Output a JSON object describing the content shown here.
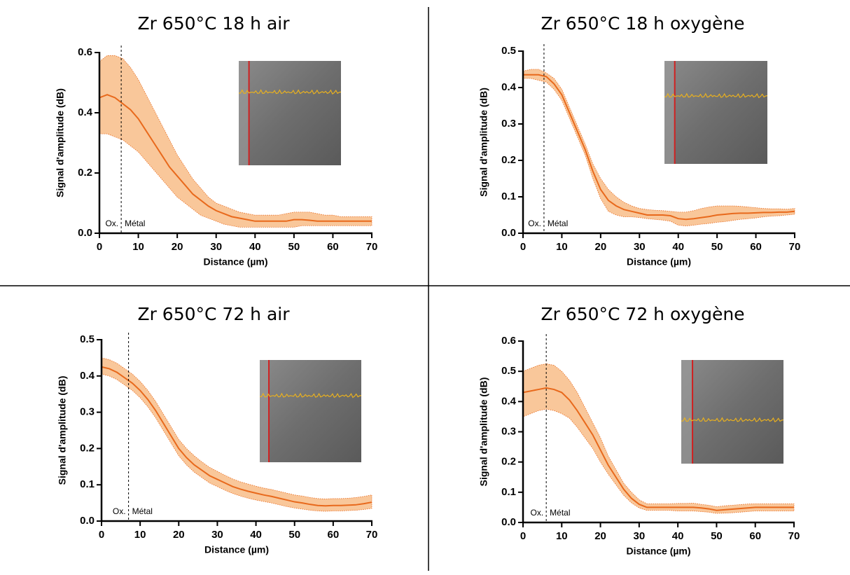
{
  "chart_data": [
    {
      "type": "line",
      "title": "Zr 650°C 18 h air",
      "x_label": "Distance (µm)",
      "y_label": "Signal d'amplitude (dB)",
      "annotations": [
        "Ox.",
        "Métal"
      ],
      "interface_x": 5.6,
      "color": "#e8691c",
      "band_color": "#f9c79a",
      "x": [
        0,
        2,
        4,
        6,
        8,
        10,
        12,
        14,
        16,
        18,
        20,
        22,
        24,
        26,
        28,
        30,
        32,
        34,
        36,
        38,
        40,
        42,
        44,
        46,
        48,
        50,
        52,
        54,
        56,
        58,
        60,
        62,
        64,
        66,
        68,
        70
      ],
      "values": [
        0.45,
        0.46,
        0.45,
        0.43,
        0.41,
        0.38,
        0.34,
        0.3,
        0.26,
        0.22,
        0.19,
        0.16,
        0.13,
        0.11,
        0.09,
        0.075,
        0.065,
        0.055,
        0.05,
        0.045,
        0.04,
        0.04,
        0.04,
        0.04,
        0.04,
        0.045,
        0.045,
        0.043,
        0.04,
        0.04,
        0.04,
        0.04,
        0.04,
        0.04,
        0.04,
        0.04
      ],
      "band": {
        "upper": [
          0.57,
          0.59,
          0.59,
          0.58,
          0.55,
          0.51,
          0.46,
          0.41,
          0.36,
          0.31,
          0.26,
          0.22,
          0.18,
          0.15,
          0.12,
          0.1,
          0.09,
          0.08,
          0.07,
          0.065,
          0.06,
          0.06,
          0.06,
          0.06,
          0.065,
          0.07,
          0.07,
          0.07,
          0.065,
          0.06,
          0.06,
          0.055,
          0.055,
          0.055,
          0.055,
          0.055
        ],
        "lower": [
          0.33,
          0.33,
          0.32,
          0.31,
          0.29,
          0.27,
          0.24,
          0.21,
          0.18,
          0.15,
          0.12,
          0.1,
          0.08,
          0.06,
          0.05,
          0.04,
          0.03,
          0.025,
          0.02,
          0.02,
          0.02,
          0.02,
          0.02,
          0.02,
          0.02,
          0.02,
          0.025,
          0.025,
          0.025,
          0.025,
          0.025,
          0.025,
          0.025,
          0.025,
          0.025,
          0.025
        ]
      },
      "xlim": [
        0,
        70
      ],
      "xticks": [
        0,
        10,
        20,
        30,
        40,
        50,
        60,
        70
      ],
      "ylim": [
        0,
        0.6
      ],
      "yticks": [
        {
          "value": 0,
          "label": "0.0"
        },
        0.2,
        0.4,
        0.6
      ]
    },
    {
      "type": "line",
      "title": "Zr 650°C 18 h oxygène",
      "x_label": "Distance (µm)",
      "y_label": "Signal d'amplitude (dB)",
      "annotations": [
        "Ox.",
        "Métal"
      ],
      "interface_x": 5.4,
      "color": "#e8691c",
      "band_color": "#f9c79a",
      "x": [
        0,
        2,
        4,
        6,
        8,
        10,
        12,
        14,
        16,
        18,
        20,
        22,
        24,
        26,
        28,
        30,
        32,
        34,
        36,
        38,
        40,
        42,
        44,
        46,
        48,
        50,
        52,
        54,
        56,
        58,
        60,
        62,
        64,
        66,
        68,
        70
      ],
      "values": [
        0.435,
        0.435,
        0.435,
        0.43,
        0.41,
        0.38,
        0.33,
        0.28,
        0.23,
        0.17,
        0.12,
        0.09,
        0.075,
        0.065,
        0.06,
        0.055,
        0.05,
        0.05,
        0.05,
        0.048,
        0.04,
        0.038,
        0.04,
        0.043,
        0.046,
        0.05,
        0.052,
        0.054,
        0.055,
        0.055,
        0.056,
        0.057,
        0.057,
        0.058,
        0.058,
        0.06
      ],
      "band": {
        "upper": [
          0.445,
          0.45,
          0.45,
          0.44,
          0.425,
          0.395,
          0.345,
          0.295,
          0.245,
          0.19,
          0.15,
          0.12,
          0.1,
          0.085,
          0.075,
          0.068,
          0.065,
          0.063,
          0.062,
          0.06,
          0.058,
          0.058,
          0.062,
          0.068,
          0.072,
          0.075,
          0.075,
          0.075,
          0.074,
          0.072,
          0.07,
          0.068,
          0.067,
          0.067,
          0.066,
          0.068
        ],
        "lower": [
          0.425,
          0.425,
          0.42,
          0.415,
          0.395,
          0.365,
          0.315,
          0.265,
          0.215,
          0.15,
          0.095,
          0.06,
          0.05,
          0.045,
          0.045,
          0.043,
          0.04,
          0.038,
          0.036,
          0.033,
          0.022,
          0.02,
          0.022,
          0.025,
          0.027,
          0.03,
          0.032,
          0.035,
          0.038,
          0.04,
          0.042,
          0.045,
          0.047,
          0.048,
          0.05,
          0.052
        ]
      },
      "xlim": [
        0,
        70
      ],
      "xticks": [
        0,
        10,
        20,
        30,
        40,
        50,
        60,
        70
      ],
      "ylim": [
        0,
        0.5
      ],
      "yticks": [
        {
          "value": 0,
          "label": "0.0"
        },
        0.1,
        0.2,
        0.3,
        0.4,
        0.5
      ]
    },
    {
      "type": "line",
      "title": "Zr 650°C 72 h air",
      "x_label": "Distance (µm)",
      "y_label": "Signal d'amplitude (dB)",
      "annotations": [
        "Ox.",
        "Métal"
      ],
      "interface_x": 7,
      "color": "#e8691c",
      "band_color": "#f9c79a",
      "x": [
        0,
        2,
        4,
        6,
        8,
        10,
        12,
        14,
        16,
        18,
        20,
        22,
        24,
        26,
        28,
        30,
        32,
        34,
        36,
        38,
        40,
        42,
        44,
        46,
        48,
        50,
        52,
        54,
        56,
        58,
        60,
        62,
        64,
        66,
        68,
        70
      ],
      "values": [
        0.425,
        0.42,
        0.41,
        0.395,
        0.38,
        0.36,
        0.335,
        0.305,
        0.27,
        0.235,
        0.2,
        0.175,
        0.155,
        0.14,
        0.125,
        0.115,
        0.105,
        0.095,
        0.088,
        0.082,
        0.077,
        0.072,
        0.068,
        0.063,
        0.058,
        0.053,
        0.05,
        0.046,
        0.043,
        0.042,
        0.043,
        0.043,
        0.044,
        0.045,
        0.048,
        0.052
      ],
      "band": {
        "upper": [
          0.45,
          0.445,
          0.435,
          0.42,
          0.405,
          0.385,
          0.36,
          0.33,
          0.295,
          0.26,
          0.225,
          0.2,
          0.18,
          0.163,
          0.148,
          0.137,
          0.126,
          0.116,
          0.108,
          0.102,
          0.096,
          0.091,
          0.087,
          0.082,
          0.077,
          0.072,
          0.069,
          0.065,
          0.062,
          0.061,
          0.062,
          0.062,
          0.063,
          0.065,
          0.068,
          0.072
        ],
        "lower": [
          0.405,
          0.4,
          0.39,
          0.375,
          0.36,
          0.34,
          0.315,
          0.285,
          0.25,
          0.215,
          0.18,
          0.155,
          0.135,
          0.12,
          0.105,
          0.095,
          0.085,
          0.076,
          0.069,
          0.063,
          0.058,
          0.054,
          0.05,
          0.045,
          0.04,
          0.036,
          0.033,
          0.03,
          0.028,
          0.027,
          0.028,
          0.028,
          0.029,
          0.03,
          0.032,
          0.035
        ]
      },
      "xlim": [
        0,
        70
      ],
      "xticks": [
        0,
        10,
        20,
        30,
        40,
        50,
        60,
        70
      ],
      "ylim": [
        0,
        0.5
      ],
      "yticks": [
        {
          "value": 0,
          "label": "0.0"
        },
        0.1,
        0.2,
        0.3,
        0.4,
        0.5
      ]
    },
    {
      "type": "line",
      "title": "Zr 650°C 72 h oxygène",
      "x_label": "Distance (µm)",
      "y_label": "Signal d'amplitude (dB)",
      "annotations": [
        "Ox.",
        "Métal"
      ],
      "interface_x": 6,
      "color": "#e8691c",
      "band_color": "#f9c79a",
      "x": [
        0,
        2,
        4,
        6,
        8,
        10,
        12,
        14,
        16,
        18,
        20,
        22,
        24,
        26,
        28,
        30,
        32,
        34,
        36,
        38,
        40,
        42,
        44,
        46,
        48,
        50,
        52,
        54,
        56,
        58,
        60,
        62,
        64,
        66,
        68,
        70
      ],
      "values": [
        0.43,
        0.435,
        0.44,
        0.445,
        0.44,
        0.43,
        0.405,
        0.37,
        0.33,
        0.29,
        0.24,
        0.19,
        0.15,
        0.11,
        0.08,
        0.06,
        0.05,
        0.05,
        0.05,
        0.05,
        0.05,
        0.05,
        0.05,
        0.048,
        0.045,
        0.04,
        0.042,
        0.044,
        0.046,
        0.048,
        0.05,
        0.05,
        0.05,
        0.05,
        0.05,
        0.05
      ],
      "band": {
        "upper": [
          0.5,
          0.51,
          0.52,
          0.525,
          0.52,
          0.5,
          0.47,
          0.43,
          0.38,
          0.33,
          0.28,
          0.22,
          0.175,
          0.13,
          0.1,
          0.075,
          0.062,
          0.062,
          0.062,
          0.062,
          0.063,
          0.063,
          0.064,
          0.06,
          0.057,
          0.052,
          0.055,
          0.057,
          0.059,
          0.061,
          0.062,
          0.062,
          0.062,
          0.062,
          0.062,
          0.062
        ],
        "lower": [
          0.35,
          0.36,
          0.37,
          0.375,
          0.37,
          0.36,
          0.345,
          0.315,
          0.28,
          0.245,
          0.2,
          0.16,
          0.125,
          0.09,
          0.065,
          0.048,
          0.04,
          0.04,
          0.04,
          0.04,
          0.038,
          0.038,
          0.038,
          0.036,
          0.034,
          0.03,
          0.031,
          0.032,
          0.034,
          0.036,
          0.038,
          0.038,
          0.038,
          0.038,
          0.038,
          0.038
        ]
      },
      "xlim": [
        0,
        70
      ],
      "xticks": [
        0,
        10,
        20,
        30,
        40,
        50,
        60,
        70
      ],
      "ylim": [
        0,
        0.6
      ],
      "yticks": [
        {
          "value": 0,
          "label": "0.0"
        },
        0.1,
        0.2,
        0.3,
        0.4,
        0.5,
        0.6
      ]
    }
  ]
}
